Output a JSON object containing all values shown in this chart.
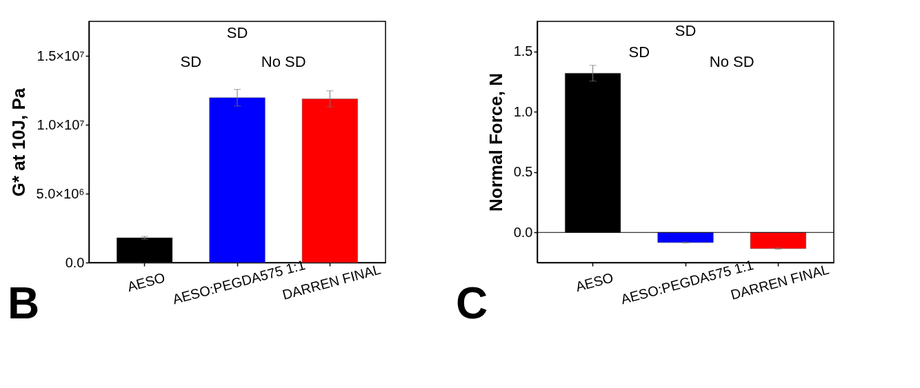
{
  "chart_data": [
    {
      "type": "bar",
      "ylabel": "G* at 10J, Pa",
      "categories": [
        "AESO",
        "AESO:PEGDA575 1:1",
        "DARREN FINAL"
      ],
      "values": [
        1800000,
        11960000,
        11880000
      ],
      "colors": [
        "#000000",
        "#0000ff",
        "#ff0000"
      ],
      "errors": [
        100000,
        600000,
        580000
      ],
      "ylim": [
        0,
        17500000
      ],
      "yticks": [
        {
          "value": 0,
          "label": "0.0"
        },
        {
          "value": 5000000,
          "label": "5.0×10⁶"
        },
        {
          "value": 10000000,
          "label": "1.0×10⁷"
        },
        {
          "value": 15000000,
          "label": "1.5×10⁷"
        }
      ],
      "grid": false,
      "annotations": [
        "SD",
        "SD",
        "No SD",
        "B"
      ]
    },
    {
      "type": "bar",
      "ylabel": "Normal Force, N",
      "categories": [
        "AESO",
        "AESO:PEGDA575 1:1",
        "DARREN FINAL"
      ],
      "values": [
        1.32,
        -0.084,
        -0.134
      ],
      "colors": [
        "#000000",
        "#0000ff",
        "#ff0000"
      ],
      "errors": [
        0.065,
        0.004,
        0.005
      ],
      "ylim": [
        -0.25,
        1.75
      ],
      "yticks": [
        {
          "value": 0,
          "label": "0.0"
        },
        {
          "value": 0.5,
          "label": "0.5"
        },
        {
          "value": 1,
          "label": "1.0"
        },
        {
          "value": 1.5,
          "label": "1.5"
        }
      ],
      "grid": false,
      "ref_lines": [
        {
          "axis": "y",
          "value": 0
        }
      ],
      "annotations": [
        "SD",
        "SD",
        "No SD",
        "C"
      ]
    }
  ]
}
